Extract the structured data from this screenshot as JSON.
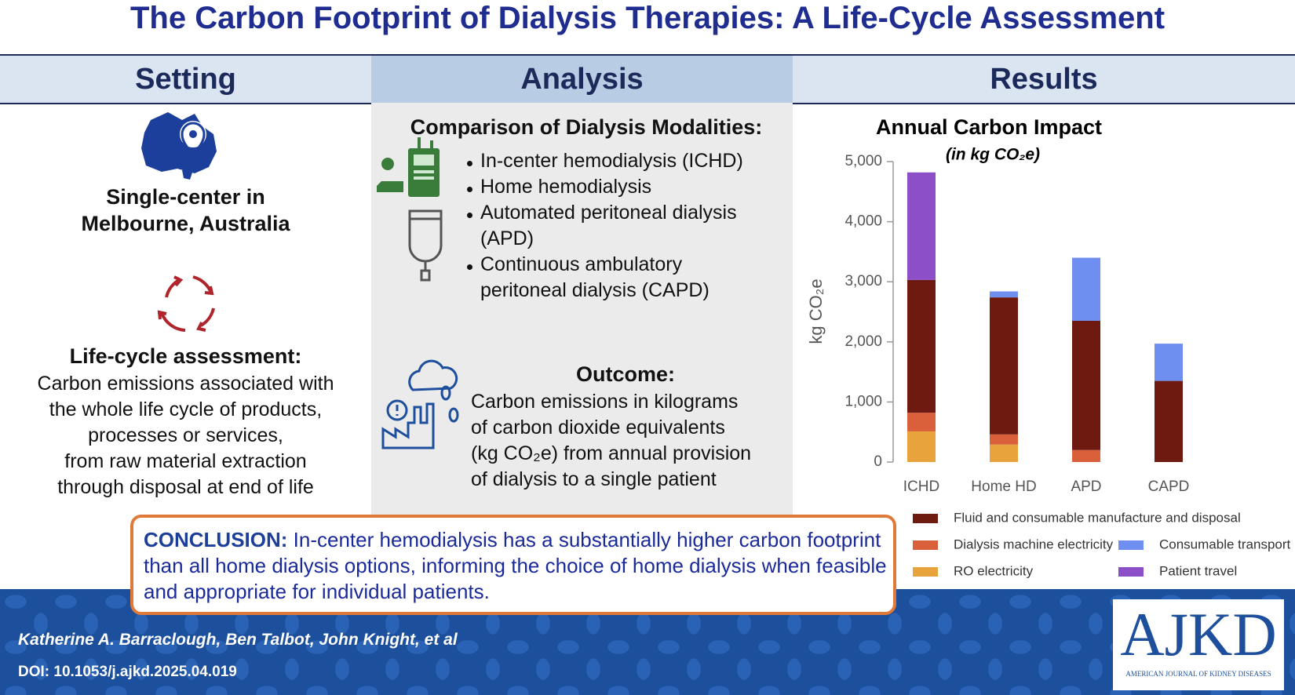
{
  "header": {
    "title": "The Carbon Footprint of Dialysis Therapies: A Life-Cycle Assessment"
  },
  "columns": {
    "setting": "Setting",
    "analysis": "Analysis",
    "results": "Results"
  },
  "setting": {
    "location": [
      "Single-center in",
      "Melbourne, Australia"
    ],
    "method_title": "Life-cycle assessment:",
    "method_lines": [
      "Carbon emissions associated with",
      "the whole life cycle of products,",
      "processes or services,",
      "from raw material extraction",
      "through disposal at end of life"
    ]
  },
  "analysis": {
    "comparison_title": "Comparison of Dialysis Modalities:",
    "modalities": [
      [
        "In-center hemodialysis (ICHD)"
      ],
      [
        "Home hemodialysis"
      ],
      [
        "Automated peritoneal dialysis",
        "(APD)"
      ],
      [
        "Continuous ambulatory",
        "peritoneal dialysis (CAPD)"
      ]
    ],
    "outcome_title": "Outcome:",
    "outcome_lines": [
      "Carbon emissions in kilograms",
      "of carbon dioxide equivalents",
      "(kg CO₂e) from annual provision",
      "of dialysis to a single patient"
    ]
  },
  "chart_data": {
    "type": "bar",
    "stacked": true,
    "title": "Annual Carbon Impact",
    "subtitle": "(in kg CO₂e)",
    "ylabel": "kg CO₂e",
    "categories": [
      "ICHD",
      "Home HD",
      "APD",
      "CAPD"
    ],
    "series": [
      {
        "name": "RO electricity",
        "color": "#e8a33c",
        "values": [
          510,
          290,
          0,
          0
        ]
      },
      {
        "name": "Dialysis machine electricity",
        "color": "#d9603a",
        "values": [
          310,
          170,
          200,
          0
        ]
      },
      {
        "name": "Fluid and consumable manufacture and disposal",
        "color": "#6e1a10",
        "values": [
          2210,
          2280,
          2150,
          1350
        ]
      },
      {
        "name": "Consumable transport",
        "color": "#6f8ff0",
        "values": [
          0,
          100,
          1050,
          620
        ]
      },
      {
        "name": "Patient travel",
        "color": "#8c4fc8",
        "values": [
          1790,
          0,
          0,
          0
        ]
      }
    ],
    "ylim": [
      0,
      5000
    ],
    "yticks": [
      0,
      {
        "value": 1000,
        "label": "1,000"
      },
      {
        "value": 2000,
        "label": "2,000"
      },
      {
        "value": 3000,
        "label": "3,000"
      },
      {
        "value": 4000,
        "label": "4,000"
      },
      {
        "value": 5000,
        "label": "5,000"
      }
    ]
  },
  "conclusion": {
    "label": "CONCLUSION:",
    "text": "In-center hemodialysis has a substantially higher carbon footprint than all home dialysis options, informing the choice of home dialysis when feasible and appropriate for individual patients."
  },
  "footer": {
    "authors": "Katherine A. Barraclough, Ben Talbot, John Knight, et al",
    "doi": "DOI: 10.1053/j.ajkd.2025.04.019",
    "logo": "AJKD",
    "journal": "AMERICAN JOURNAL OF KIDNEY DISEASES"
  }
}
